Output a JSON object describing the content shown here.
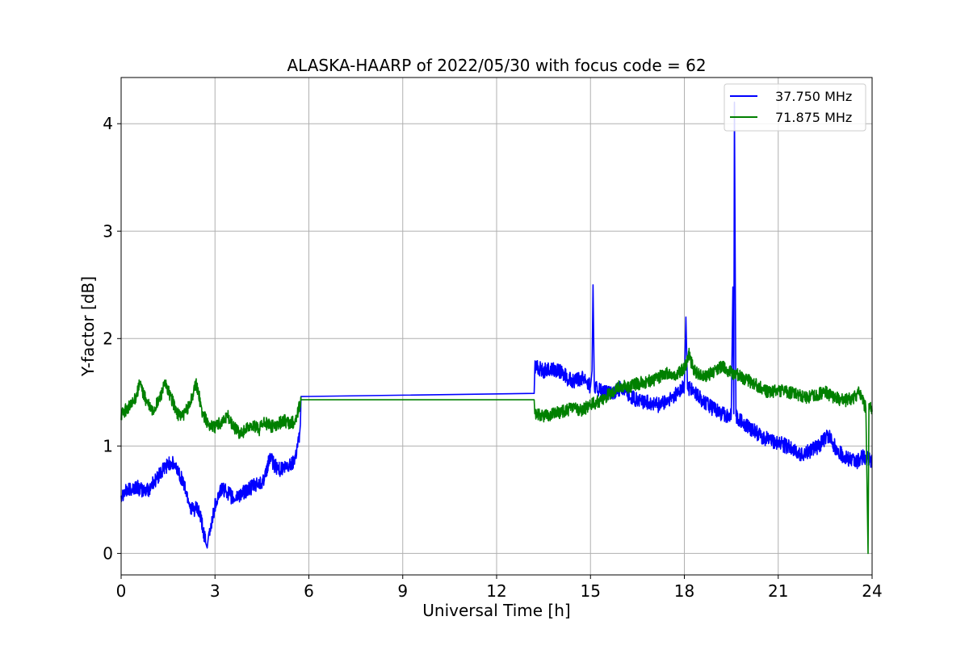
{
  "chart_data": {
    "type": "line",
    "title": "ALASKA-HAARP of 2022/05/30 with focus code = 62",
    "xlabel": "Universal Time [h]",
    "ylabel": "Y-factor [dB]",
    "xlim": [
      0,
      24
    ],
    "ylim": [
      -0.2,
      4.43
    ],
    "xticks": [
      0,
      3,
      6,
      9,
      12,
      15,
      18,
      21,
      24
    ],
    "xtick_labels": [
      "0",
      "3",
      "6",
      "9",
      "12",
      "15",
      "18",
      "21",
      "24"
    ],
    "yticks": [
      0,
      1,
      2,
      3,
      4
    ],
    "ytick_labels": [
      "0",
      "1",
      "2",
      "3",
      "4"
    ],
    "grid": true,
    "legend_position": "top-right",
    "series": [
      {
        "name": "37.750 MHz",
        "color": "#0000ff",
        "points": [
          [
            0.0,
            0.55
          ],
          [
            0.3,
            0.6
          ],
          [
            0.5,
            0.62
          ],
          [
            0.7,
            0.58
          ],
          [
            0.9,
            0.6
          ],
          [
            1.0,
            0.65
          ],
          [
            1.2,
            0.72
          ],
          [
            1.4,
            0.8
          ],
          [
            1.5,
            0.83
          ],
          [
            1.6,
            0.85
          ],
          [
            1.8,
            0.78
          ],
          [
            1.9,
            0.72
          ],
          [
            2.0,
            0.65
          ],
          [
            2.1,
            0.55
          ],
          [
            2.2,
            0.45
          ],
          [
            2.3,
            0.4
          ],
          [
            2.4,
            0.42
          ],
          [
            2.5,
            0.38
          ],
          [
            2.6,
            0.25
          ],
          [
            2.7,
            0.1
          ],
          [
            2.75,
            0.05
          ],
          [
            2.8,
            0.15
          ],
          [
            2.9,
            0.3
          ],
          [
            3.0,
            0.45
          ],
          [
            3.2,
            0.6
          ],
          [
            3.4,
            0.57
          ],
          [
            3.6,
            0.5
          ],
          [
            3.8,
            0.55
          ],
          [
            4.0,
            0.58
          ],
          [
            4.2,
            0.62
          ],
          [
            4.4,
            0.65
          ],
          [
            4.6,
            0.7
          ],
          [
            4.75,
            0.9
          ],
          [
            4.9,
            0.82
          ],
          [
            5.1,
            0.78
          ],
          [
            5.3,
            0.8
          ],
          [
            5.5,
            0.85
          ],
          [
            5.6,
            0.95
          ],
          [
            5.7,
            1.1
          ],
          [
            5.73,
            1.2
          ],
          [
            5.75,
            1.46
          ],
          [
            13.2,
            1.49
          ],
          [
            13.22,
            1.75
          ],
          [
            13.5,
            1.7
          ],
          [
            13.8,
            1.72
          ],
          [
            14.1,
            1.68
          ],
          [
            14.3,
            1.62
          ],
          [
            14.5,
            1.6
          ],
          [
            14.8,
            1.65
          ],
          [
            15.0,
            1.55
          ],
          [
            15.05,
            1.7
          ],
          [
            15.08,
            2.5
          ],
          [
            15.12,
            1.55
          ],
          [
            15.4,
            1.5
          ],
          [
            15.7,
            1.48
          ],
          [
            16.0,
            1.55
          ],
          [
            16.3,
            1.45
          ],
          [
            16.6,
            1.42
          ],
          [
            16.9,
            1.4
          ],
          [
            17.2,
            1.38
          ],
          [
            17.5,
            1.42
          ],
          [
            17.8,
            1.5
          ],
          [
            18.0,
            1.55
          ],
          [
            18.05,
            2.2
          ],
          [
            18.1,
            1.55
          ],
          [
            18.3,
            1.5
          ],
          [
            18.6,
            1.42
          ],
          [
            18.9,
            1.35
          ],
          [
            19.2,
            1.3
          ],
          [
            19.4,
            1.28
          ],
          [
            19.5,
            1.3
          ],
          [
            19.55,
            2.48
          ],
          [
            19.58,
            1.3
          ],
          [
            19.6,
            4.2
          ],
          [
            19.65,
            1.28
          ],
          [
            19.9,
            1.2
          ],
          [
            20.2,
            1.15
          ],
          [
            20.5,
            1.08
          ],
          [
            20.8,
            1.05
          ],
          [
            21.1,
            1.02
          ],
          [
            21.4,
            0.98
          ],
          [
            21.7,
            0.92
          ],
          [
            22.0,
            0.95
          ],
          [
            22.3,
            1.0
          ],
          [
            22.6,
            1.1
          ],
          [
            22.9,
            0.95
          ],
          [
            23.2,
            0.88
          ],
          [
            23.5,
            0.85
          ],
          [
            23.7,
            0.9
          ],
          [
            23.85,
            0.88
          ],
          [
            24.0,
            0.85
          ]
        ]
      },
      {
        "name": "71.875 MHz",
        "color": "#008000",
        "points": [
          [
            0.0,
            1.3
          ],
          [
            0.2,
            1.35
          ],
          [
            0.4,
            1.4
          ],
          [
            0.6,
            1.58
          ],
          [
            0.8,
            1.42
          ],
          [
            1.0,
            1.32
          ],
          [
            1.2,
            1.42
          ],
          [
            1.4,
            1.58
          ],
          [
            1.6,
            1.45
          ],
          [
            1.8,
            1.3
          ],
          [
            2.0,
            1.28
          ],
          [
            2.2,
            1.4
          ],
          [
            2.4,
            1.58
          ],
          [
            2.5,
            1.45
          ],
          [
            2.6,
            1.3
          ],
          [
            2.8,
            1.2
          ],
          [
            3.0,
            1.18
          ],
          [
            3.2,
            1.22
          ],
          [
            3.4,
            1.28
          ],
          [
            3.6,
            1.18
          ],
          [
            3.8,
            1.12
          ],
          [
            4.0,
            1.15
          ],
          [
            4.2,
            1.2
          ],
          [
            4.4,
            1.15
          ],
          [
            4.6,
            1.22
          ],
          [
            4.8,
            1.18
          ],
          [
            5.0,
            1.2
          ],
          [
            5.2,
            1.24
          ],
          [
            5.4,
            1.2
          ],
          [
            5.6,
            1.25
          ],
          [
            5.75,
            1.43
          ],
          [
            13.2,
            1.43
          ],
          [
            13.22,
            1.3
          ],
          [
            13.5,
            1.28
          ],
          [
            13.8,
            1.3
          ],
          [
            14.1,
            1.32
          ],
          [
            14.4,
            1.35
          ],
          [
            14.7,
            1.33
          ],
          [
            15.0,
            1.38
          ],
          [
            15.3,
            1.42
          ],
          [
            15.6,
            1.48
          ],
          [
            15.9,
            1.55
          ],
          [
            16.2,
            1.55
          ],
          [
            16.5,
            1.58
          ],
          [
            16.8,
            1.6
          ],
          [
            17.1,
            1.62
          ],
          [
            17.4,
            1.68
          ],
          [
            17.7,
            1.65
          ],
          [
            18.0,
            1.72
          ],
          [
            18.15,
            1.85
          ],
          [
            18.3,
            1.7
          ],
          [
            18.6,
            1.65
          ],
          [
            18.9,
            1.68
          ],
          [
            19.2,
            1.75
          ],
          [
            19.5,
            1.68
          ],
          [
            19.8,
            1.65
          ],
          [
            20.1,
            1.6
          ],
          [
            20.4,
            1.55
          ],
          [
            20.7,
            1.5
          ],
          [
            21.0,
            1.52
          ],
          [
            21.3,
            1.5
          ],
          [
            21.6,
            1.48
          ],
          [
            21.9,
            1.45
          ],
          [
            22.2,
            1.48
          ],
          [
            22.5,
            1.5
          ],
          [
            22.8,
            1.45
          ],
          [
            23.1,
            1.42
          ],
          [
            23.4,
            1.45
          ],
          [
            23.6,
            1.5
          ],
          [
            23.8,
            1.35
          ],
          [
            23.87,
            0.0
          ],
          [
            23.9,
            1.4
          ],
          [
            24.0,
            1.32
          ]
        ]
      }
    ]
  }
}
